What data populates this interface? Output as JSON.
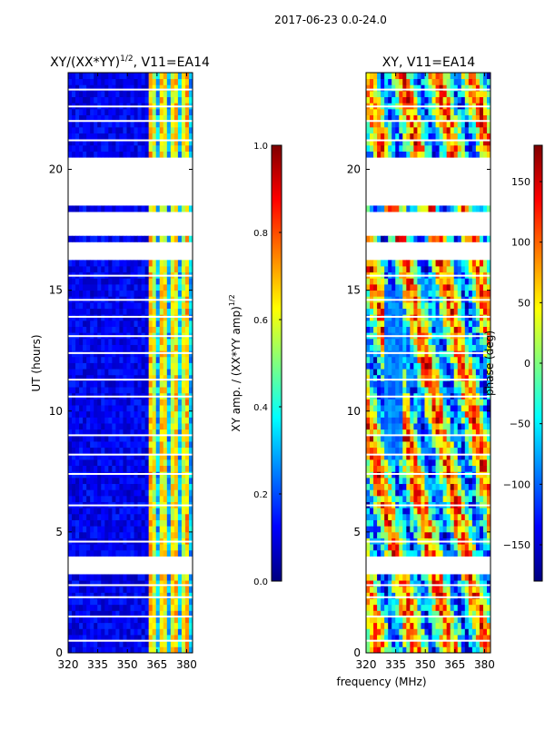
{
  "figure_title": "2017-06-23 0.0-24.0",
  "x_common_label": "frequency (MHz)",
  "colors": {
    "jet": [
      "#00007f",
      "#0000ff",
      "#007fff",
      "#00ffff",
      "#7fff7f",
      "#ffff00",
      "#ff7f00",
      "#ff0000",
      "#7f0000"
    ],
    "frame": "#000000",
    "background": "#ffffff"
  },
  "chart_data": [
    {
      "type": "heatmap",
      "title_main": "XY/(XX*YY)",
      "title_sup": "1/2",
      "title_tail": ", V11=EA14",
      "xlabel": "",
      "ylabel": "UT (hours)",
      "xlim": [
        320,
        383
      ],
      "ylim": [
        0,
        24
      ],
      "xticks": [
        320,
        335,
        350,
        365,
        380
      ],
      "yticks": [
        0,
        5,
        10,
        15,
        20
      ],
      "xtick_labels": [
        "320",
        "335",
        "350",
        "365",
        "380"
      ],
      "ytick_labels": [
        "0",
        "5",
        "10",
        "15",
        "20"
      ],
      "value_range": [
        0.0,
        1.0
      ],
      "flagged_ut_ranges": [
        [
          3.25,
          3.9
        ],
        [
          16.3,
          17.05
        ],
        [
          17.2,
          18.2
        ],
        [
          18.4,
          20.4
        ]
      ],
      "flagged_ut_lines": [
        0.5,
        1.5,
        2.3,
        2.8,
        4.6,
        6.1,
        7.4,
        8.2,
        9.0,
        10.6,
        11.3,
        12.4,
        13.1,
        13.9,
        14.6,
        15.6,
        21.2,
        22.0,
        22.6,
        23.3
      ],
      "colorbar": {
        "label_main": "XY amp. / (XX*YY amp)",
        "label_sup": "1/2",
        "ticks": [
          0.0,
          0.2,
          0.4,
          0.6,
          0.8,
          1.0
        ],
        "tick_labels": [
          "0.0",
          "0.2",
          "0.4",
          "0.6",
          "0.8",
          "1.0"
        ],
        "range": [
          0.0,
          1.0
        ]
      }
    },
    {
      "type": "heatmap",
      "title_main": "XY, V11=EA14",
      "xlabel": "frequency (MHz)",
      "ylabel": "",
      "xlim": [
        320,
        383
      ],
      "ylim": [
        0,
        24
      ],
      "xticks": [
        320,
        335,
        350,
        365,
        380
      ],
      "yticks": [
        0,
        5,
        10,
        15,
        20
      ],
      "xtick_labels": [
        "320",
        "335",
        "350",
        "365",
        "380"
      ],
      "ytick_labels": [
        "0",
        "5",
        "10",
        "15",
        "20"
      ],
      "value_range": [
        -180,
        180
      ],
      "flagged_ut_ranges": [
        [
          3.25,
          3.9
        ],
        [
          16.3,
          17.05
        ],
        [
          17.2,
          18.2
        ],
        [
          18.4,
          20.4
        ]
      ],
      "flagged_ut_lines": [
        0.5,
        1.5,
        2.3,
        2.8,
        4.6,
        6.1,
        7.4,
        8.2,
        9.0,
        10.6,
        11.3,
        12.4,
        13.1,
        13.9,
        14.6,
        15.6,
        21.2,
        22.0,
        22.6,
        23.3
      ],
      "colorbar": {
        "label_main": "phase (deg)",
        "ticks": [
          -150,
          -100,
          -50,
          0,
          50,
          100,
          150
        ],
        "tick_labels": [
          "−150",
          "−100",
          "−50",
          "0",
          "50",
          "100",
          "150"
        ],
        "range": [
          -180,
          180
        ]
      }
    }
  ]
}
